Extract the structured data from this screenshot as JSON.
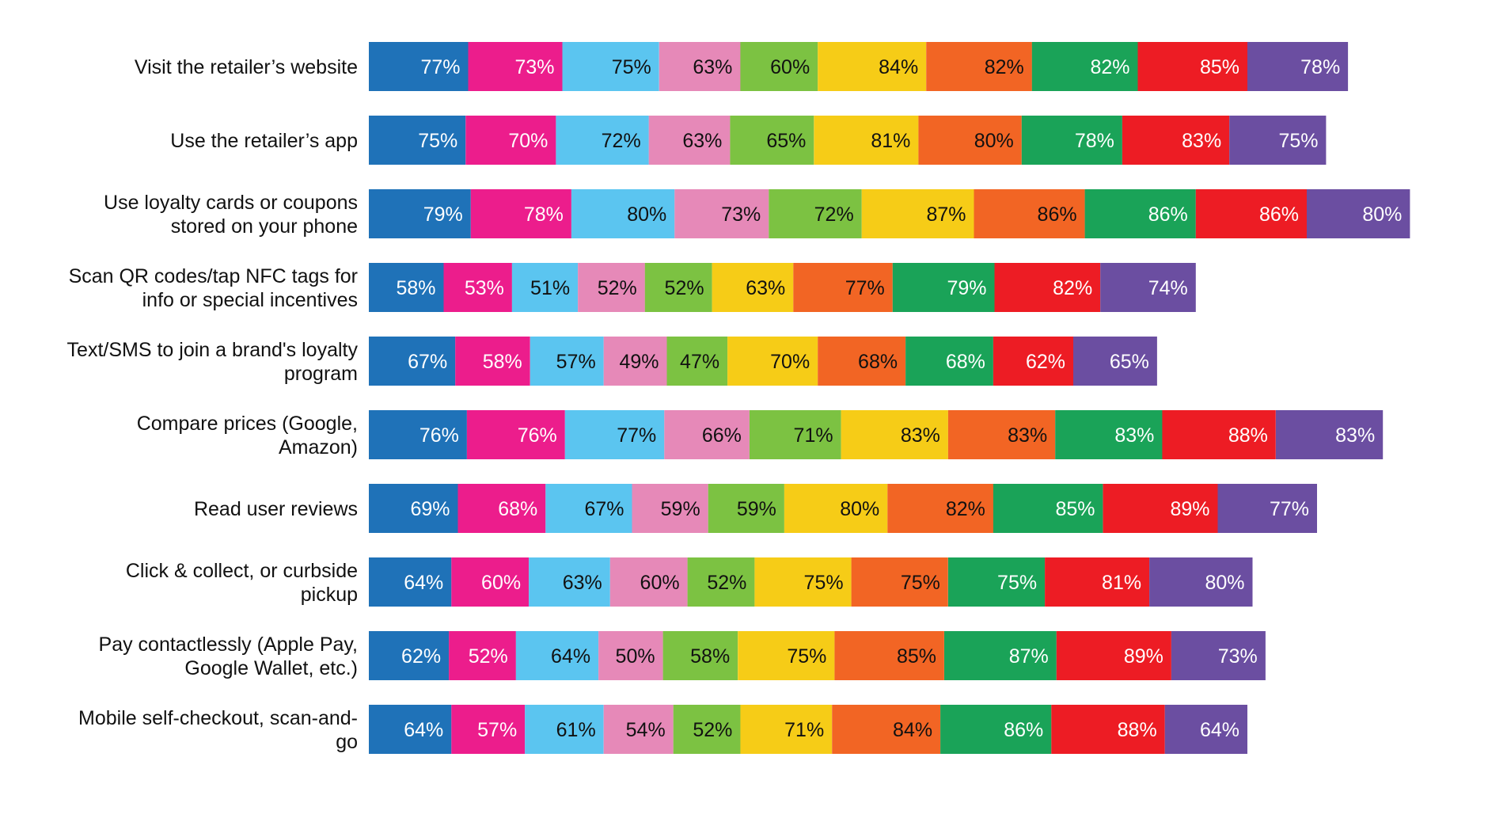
{
  "chart_data": {
    "type": "bar",
    "orientation": "horizontal",
    "stacked": true,
    "title": "",
    "xlabel": "",
    "ylabel": "",
    "legend": "none",
    "grid": false,
    "value_format": "percent",
    "categories": [
      [
        "Visit the retailer’s website"
      ],
      [
        "Use the retailer’s app"
      ],
      [
        "Use loyalty cards or coupons",
        "stored on your phone"
      ],
      [
        "Scan QR codes/tap NFC tags for",
        "info or special incentives"
      ],
      [
        "Text/SMS to join a brand's loyalty",
        "program"
      ],
      [
        "Compare prices (Google,",
        "Amazon)"
      ],
      [
        "Read user reviews"
      ],
      [
        "Click & collect, or curbside",
        "pickup"
      ],
      [
        "Pay contactlessly (Apple Pay,",
        "Google Wallet, etc.)"
      ],
      [
        "Mobile self-checkout, scan-and-",
        "go"
      ]
    ],
    "series": [
      {
        "color": "#1f72b8",
        "label_color": "#ffffff",
        "values": [
          77,
          75,
          79,
          58,
          67,
          76,
          69,
          64,
          62,
          64
        ]
      },
      {
        "color": "#ec1d8c",
        "label_color": "#ffffff",
        "values": [
          73,
          70,
          78,
          53,
          58,
          76,
          68,
          60,
          52,
          57
        ]
      },
      {
        "color": "#5bc5f0",
        "label_color": "#111111",
        "values": [
          75,
          72,
          80,
          51,
          57,
          77,
          67,
          63,
          64,
          61
        ]
      },
      {
        "color": "#e689b8",
        "label_color": "#111111",
        "values": [
          63,
          63,
          73,
          52,
          49,
          66,
          59,
          60,
          50,
          54
        ]
      },
      {
        "color": "#7cc242",
        "label_color": "#111111",
        "values": [
          60,
          65,
          72,
          52,
          47,
          71,
          59,
          52,
          58,
          52
        ]
      },
      {
        "color": "#f6cc17",
        "label_color": "#111111",
        "values": [
          84,
          81,
          87,
          63,
          70,
          83,
          80,
          75,
          75,
          71
        ]
      },
      {
        "color": "#f26524",
        "label_color": "#111111",
        "values": [
          82,
          80,
          86,
          77,
          68,
          83,
          82,
          75,
          85,
          84
        ]
      },
      {
        "color": "#1aa358",
        "label_color": "#ffffff",
        "values": [
          82,
          78,
          86,
          79,
          68,
          83,
          85,
          75,
          87,
          86
        ]
      },
      {
        "color": "#ed1c24",
        "label_color": "#ffffff",
        "values": [
          85,
          83,
          86,
          82,
          62,
          88,
          89,
          81,
          89,
          88
        ]
      },
      {
        "color": "#6b4ea1",
        "label_color": "#ffffff",
        "values": [
          78,
          75,
          80,
          74,
          65,
          83,
          77,
          80,
          73,
          64
        ]
      }
    ]
  }
}
